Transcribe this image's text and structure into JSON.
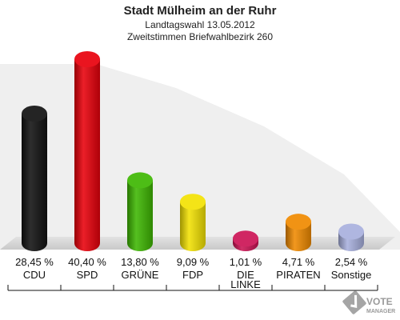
{
  "chart_data": {
    "type": "bar",
    "title": "Stadt Mülheim an der Ruhr",
    "subtitle": "Landtagswahl 13.05.2012",
    "subtitle2": "Zweitstimmen Briefwahlbezirk 260",
    "categories": [
      "CDU",
      "SPD",
      "GRÜNE",
      "FDP",
      "DIE LINKE",
      "PIRATEN",
      "Sonstige"
    ],
    "category_lines": [
      [
        "CDU"
      ],
      [
        "SPD"
      ],
      [
        "GRÜNE"
      ],
      [
        "FDP"
      ],
      [
        "DIE",
        "LINKE"
      ],
      [
        "PIRATEN"
      ],
      [
        "Sonstige"
      ]
    ],
    "values": [
      28.45,
      40.4,
      13.8,
      9.09,
      1.01,
      4.71,
      2.54
    ],
    "value_labels": [
      "28,45 %",
      "40,40 %",
      "13,80 %",
      "9,09 %",
      "1,01 %",
      "4,71 %",
      "2,54 %"
    ],
    "colors": [
      "#111111",
      "#e8000b",
      "#3eb702",
      "#f3e203",
      "#cc1455",
      "#f08a00",
      "#a8b0dd"
    ],
    "ylim": [
      0,
      40.4
    ],
    "grid": false,
    "legend": "none"
  },
  "logo": {
    "line1": "VOTE",
    "line2": "MANAGER"
  }
}
